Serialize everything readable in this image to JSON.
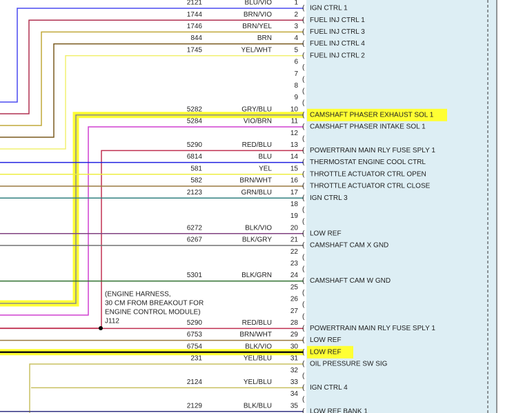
{
  "annotation": [
    "(ENGINE HARNESS,",
    "30 CM FROM BREAKOUT FOR",
    "ENGINE CONTROL MODULE)",
    "J112"
  ],
  "pins": [
    {
      "pin": 1,
      "circuit": 2121,
      "color": "BLU/VIO",
      "label": "IGN CTRL 1"
    },
    {
      "pin": 2,
      "circuit": 1744,
      "color": "BRN/VIO",
      "label": "FUEL INJ CTRL 1"
    },
    {
      "pin": 3,
      "circuit": 1746,
      "color": "BRN/YEL",
      "label": "FUEL INJ CTRL 3"
    },
    {
      "pin": 4,
      "circuit": 844,
      "color": "BRN",
      "label": "FUEL INJ CTRL 4"
    },
    {
      "pin": 5,
      "circuit": 1745,
      "color": "YEL/WHT",
      "label": "FUEL INJ CTRL 2"
    },
    {
      "pin": 6
    },
    {
      "pin": 7
    },
    {
      "pin": 8
    },
    {
      "pin": 9
    },
    {
      "pin": 10,
      "circuit": 5282,
      "color": "GRY/BLU",
      "label": "CAMSHAFT PHASER EXHAUST SOL 1"
    },
    {
      "pin": 11,
      "circuit": 5284,
      "color": "VIO/BRN",
      "label": "CAMSHAFT PHASER INTAKE SOL 1"
    },
    {
      "pin": 12
    },
    {
      "pin": 13,
      "circuit": 5290,
      "color": "RED/BLU",
      "label": "POWERTRAIN MAIN RLY FUSE SPLY 1"
    },
    {
      "pin": 14,
      "circuit": 6814,
      "color": "BLU",
      "label": "THERMOSTAT ENGINE COOL CTRL"
    },
    {
      "pin": 15,
      "circuit": 581,
      "color": "YEL",
      "label": "THROTTLE ACTUATOR CTRL OPEN"
    },
    {
      "pin": 16,
      "circuit": 582,
      "color": "BRN/WHT",
      "label": "THROTTLE ACTUATOR CTRL CLOSE"
    },
    {
      "pin": 17,
      "circuit": 2123,
      "color": "GRN/BLU",
      "label": "IGN CTRL 3"
    },
    {
      "pin": 18
    },
    {
      "pin": 19
    },
    {
      "pin": 20,
      "circuit": 6272,
      "color": "BLK/VIO",
      "label": "LOW REF"
    },
    {
      "pin": 21,
      "circuit": 6267,
      "color": "BLK/GRY",
      "label": "CAMSHAFT CAM X GND"
    },
    {
      "pin": 22
    },
    {
      "pin": 23
    },
    {
      "pin": 24,
      "circuit": 5301,
      "color": "BLK/GRN",
      "label": "CAMSHAFT CAM W GND"
    },
    {
      "pin": 25
    },
    {
      "pin": 26
    },
    {
      "pin": 27
    },
    {
      "pin": 28,
      "circuit": 5290,
      "color": "RED/BLU",
      "label": "POWERTRAIN MAIN RLY FUSE SPLY 1"
    },
    {
      "pin": 29,
      "circuit": 6753,
      "color": "BRN/WHT",
      "label": "LOW REF"
    },
    {
      "pin": 30,
      "circuit": 6754,
      "color": "BLK/VIO",
      "label": "LOW REF"
    },
    {
      "pin": 31,
      "circuit": 231,
      "color": "YEL/BLU",
      "label": "OIL PRESSURE SW SIG"
    },
    {
      "pin": 32
    },
    {
      "pin": 33,
      "circuit": 2124,
      "color": "YEL/BLU",
      "label": "IGN CTRL 4"
    },
    {
      "pin": 34
    },
    {
      "pin": 35,
      "circuit": 2129,
      "color": "BLK/BLU",
      "label": "LOW REF BANK 1"
    }
  ]
}
